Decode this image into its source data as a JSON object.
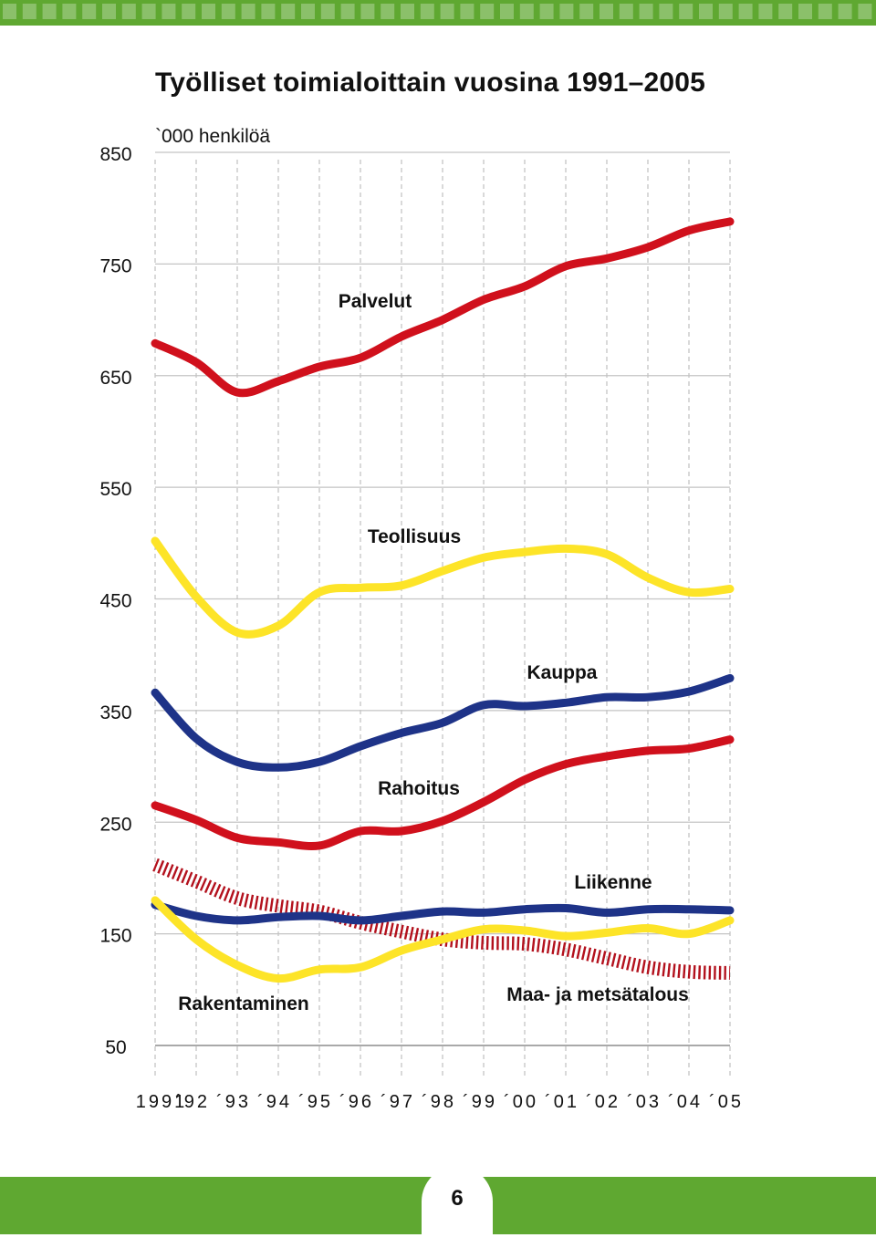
{
  "page": {
    "number": "6"
  },
  "colors": {
    "band_green": "#5fa831",
    "red": "#d0101c",
    "yellow": "#fde428",
    "blue": "#1e3388",
    "dark_red": "#b3111d"
  },
  "chart_data": {
    "type": "line",
    "title": "Työlliset toimialoittain vuosina 1991–2005",
    "ylabel": "`000 henkilöä",
    "ylim": [
      50,
      850
    ],
    "yticks": [
      "850",
      "750",
      "650",
      "550",
      "450",
      "350",
      "250",
      "150",
      "50"
    ],
    "categories": [
      "1991",
      "´92",
      "´93",
      "´94",
      "´95",
      "´96",
      "´97",
      "´98",
      "´99",
      "´00",
      "´01",
      "´02",
      "´03",
      "´04",
      "´05"
    ],
    "grid": true,
    "series": [
      {
        "name": "Palvelut",
        "color": "#d0101c",
        "style": "solid",
        "values": [
          679,
          662,
          635,
          645,
          658,
          666,
          685,
          700,
          718,
          730,
          748,
          755,
          765,
          780,
          788
        ]
      },
      {
        "name": "Teollisuus",
        "color": "#fde428",
        "style": "solid",
        "values": [
          502,
          452,
          420,
          426,
          456,
          460,
          462,
          475,
          487,
          492,
          495,
          490,
          469,
          456,
          459
        ]
      },
      {
        "name": "Kauppa",
        "color": "#1e3388",
        "style": "solid",
        "values": [
          366,
          325,
          304,
          299,
          304,
          318,
          330,
          339,
          355,
          354,
          357,
          362,
          362,
          367,
          379
        ]
      },
      {
        "name": "Rahoitus",
        "color": "#d0101c",
        "style": "solid",
        "values": [
          265,
          252,
          236,
          232,
          229,
          242,
          242,
          251,
          268,
          288,
          302,
          309,
          314,
          316,
          324
        ]
      },
      {
        "name": "Liikenne",
        "color": "#1e3388",
        "style": "solid",
        "values": [
          176,
          166,
          162,
          165,
          166,
          162,
          166,
          170,
          169,
          172,
          173,
          169,
          172,
          172,
          171
        ]
      },
      {
        "name": "Maa- ja metsätalous",
        "color": "#b3111d",
        "style": "striped",
        "values": [
          212,
          197,
          182,
          175,
          170,
          160,
          152,
          145,
          142,
          141,
          136,
          128,
          120,
          116,
          115
        ]
      },
      {
        "name": "Rakentaminen",
        "color": "#fde428",
        "style": "solid",
        "values": [
          180,
          145,
          122,
          110,
          118,
          120,
          135,
          145,
          154,
          153,
          148,
          151,
          155,
          150,
          162
        ]
      }
    ]
  }
}
